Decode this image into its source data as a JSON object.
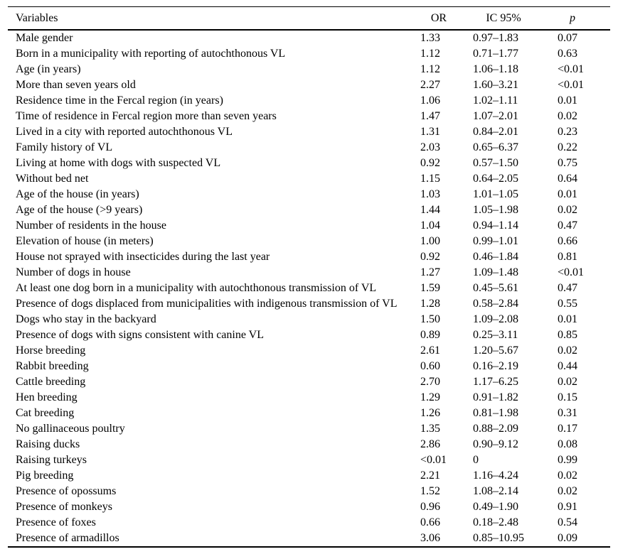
{
  "colors": {
    "text": "#000000",
    "rule": "#000000",
    "background": "#ffffff"
  },
  "table": {
    "headers": {
      "variables": "Variables",
      "or": "OR",
      "ic95": "IC 95%",
      "p": "p"
    },
    "rows": [
      {
        "variable": "Male gender",
        "or": "1.33",
        "ic95": "0.97–1.83",
        "p": "0.07"
      },
      {
        "variable": "Born in a municipality with reporting of autochthonous VL",
        "or": "1.12",
        "ic95": "0.71–1.77",
        "p": "0.63"
      },
      {
        "variable": "Age (in years)",
        "or": "1.12",
        "ic95": "1.06–1.18",
        "p": "<0.01"
      },
      {
        "variable": "More than seven years old",
        "or": "2.27",
        "ic95": "1.60–3.21",
        "p": "<0.01"
      },
      {
        "variable": "Residence time in the Fercal region (in years)",
        "or": "1.06",
        "ic95": "1.02–1.11",
        "p": "0.01"
      },
      {
        "variable": "Time of residence in Fercal region more than seven years",
        "or": "1.47",
        "ic95": "1.07–2.01",
        "p": "0.02"
      },
      {
        "variable": "Lived in a city with reported autochthonous VL",
        "or": "1.31",
        "ic95": "0.84–2.01",
        "p": "0.23"
      },
      {
        "variable": "Family history of VL",
        "or": "2.03",
        "ic95": "0.65–6.37",
        "p": "0.22"
      },
      {
        "variable": "Living at home with dogs with suspected VL",
        "or": "0.92",
        "ic95": "0.57–1.50",
        "p": "0.75"
      },
      {
        "variable": "Without bed net",
        "or": "1.15",
        "ic95": "0.64–2.05",
        "p": "0.64"
      },
      {
        "variable": "Age of the house (in years)",
        "or": "1.03",
        "ic95": "1.01–1.05",
        "p": "0.01"
      },
      {
        "variable": "Age of the house (>9 years)",
        "or": "1.44",
        "ic95": "1.05–1.98",
        "p": "0.02"
      },
      {
        "variable": "Number of residents in the house",
        "or": "1.04",
        "ic95": "0.94–1.14",
        "p": "0.47"
      },
      {
        "variable": "Elevation of house (in meters)",
        "or": "1.00",
        "ic95": "0.99–1.01",
        "p": "0.66"
      },
      {
        "variable": "House not sprayed with insecticides during the last year",
        "or": "0.92",
        "ic95": "0.46–1.84",
        "p": "0.81"
      },
      {
        "variable": "Number of dogs in house",
        "or": "1.27",
        "ic95": "1.09–1.48",
        "p": "<0.01"
      },
      {
        "variable": "At least one dog born in a municipality with autochthonous transmission of VL",
        "or": "1.59",
        "ic95": "0.45–5.61",
        "p": "0.47"
      },
      {
        "variable": "Presence of dogs displaced from municipalities with indigenous transmission of VL",
        "or": "1.28",
        "ic95": "0.58–2.84",
        "p": "0.55"
      },
      {
        "variable": "Dogs who stay in the backyard",
        "or": "1.50",
        "ic95": "1.09–2.08",
        "p": "0.01"
      },
      {
        "variable": "Presence of dogs with signs consistent with canine VL",
        "or": "0.89",
        "ic95": "0.25–3.11",
        "p": "0.85"
      },
      {
        "variable": "Horse breeding",
        "or": "2.61",
        "ic95": "1.20–5.67",
        "p": "0.02"
      },
      {
        "variable": "Rabbit breeding",
        "or": "0.60",
        "ic95": "0.16–2.19",
        "p": "0.44"
      },
      {
        "variable": "Cattle breeding",
        "or": "2.70",
        "ic95": "1.17–6.25",
        "p": "0.02"
      },
      {
        "variable": "Hen breeding",
        "or": "1.29",
        "ic95": "0.91–1.82",
        "p": "0.15"
      },
      {
        "variable": "Cat breeding",
        "or": "1.26",
        "ic95": "0.81–1.98",
        "p": "0.31"
      },
      {
        "variable": "No gallinaceous poultry",
        "or": "1.35",
        "ic95": "0.88–2.09",
        "p": "0.17"
      },
      {
        "variable": "Raising ducks",
        "or": "2.86",
        "ic95": "0.90–9.12",
        "p": "0.08"
      },
      {
        "variable": "Raising turkeys",
        "or": "<0.01",
        "ic95": "0",
        "p": "0.99"
      },
      {
        "variable": "Pig breeding",
        "or": "2.21",
        "ic95": "1.16–4.24",
        "p": "0.02"
      },
      {
        "variable": "Presence of opossums",
        "or": "1.52",
        "ic95": "1.08–2.14",
        "p": "0.02"
      },
      {
        "variable": "Presence of monkeys",
        "or": "0.96",
        "ic95": "0.49–1.90",
        "p": "0.91"
      },
      {
        "variable": "Presence of foxes",
        "or": "0.66",
        "ic95": "0.18–2.48",
        "p": "0.54"
      },
      {
        "variable": "Presence of armadillos",
        "or": "3.06",
        "ic95": "0.85–10.95",
        "p": "0.09"
      }
    ]
  }
}
